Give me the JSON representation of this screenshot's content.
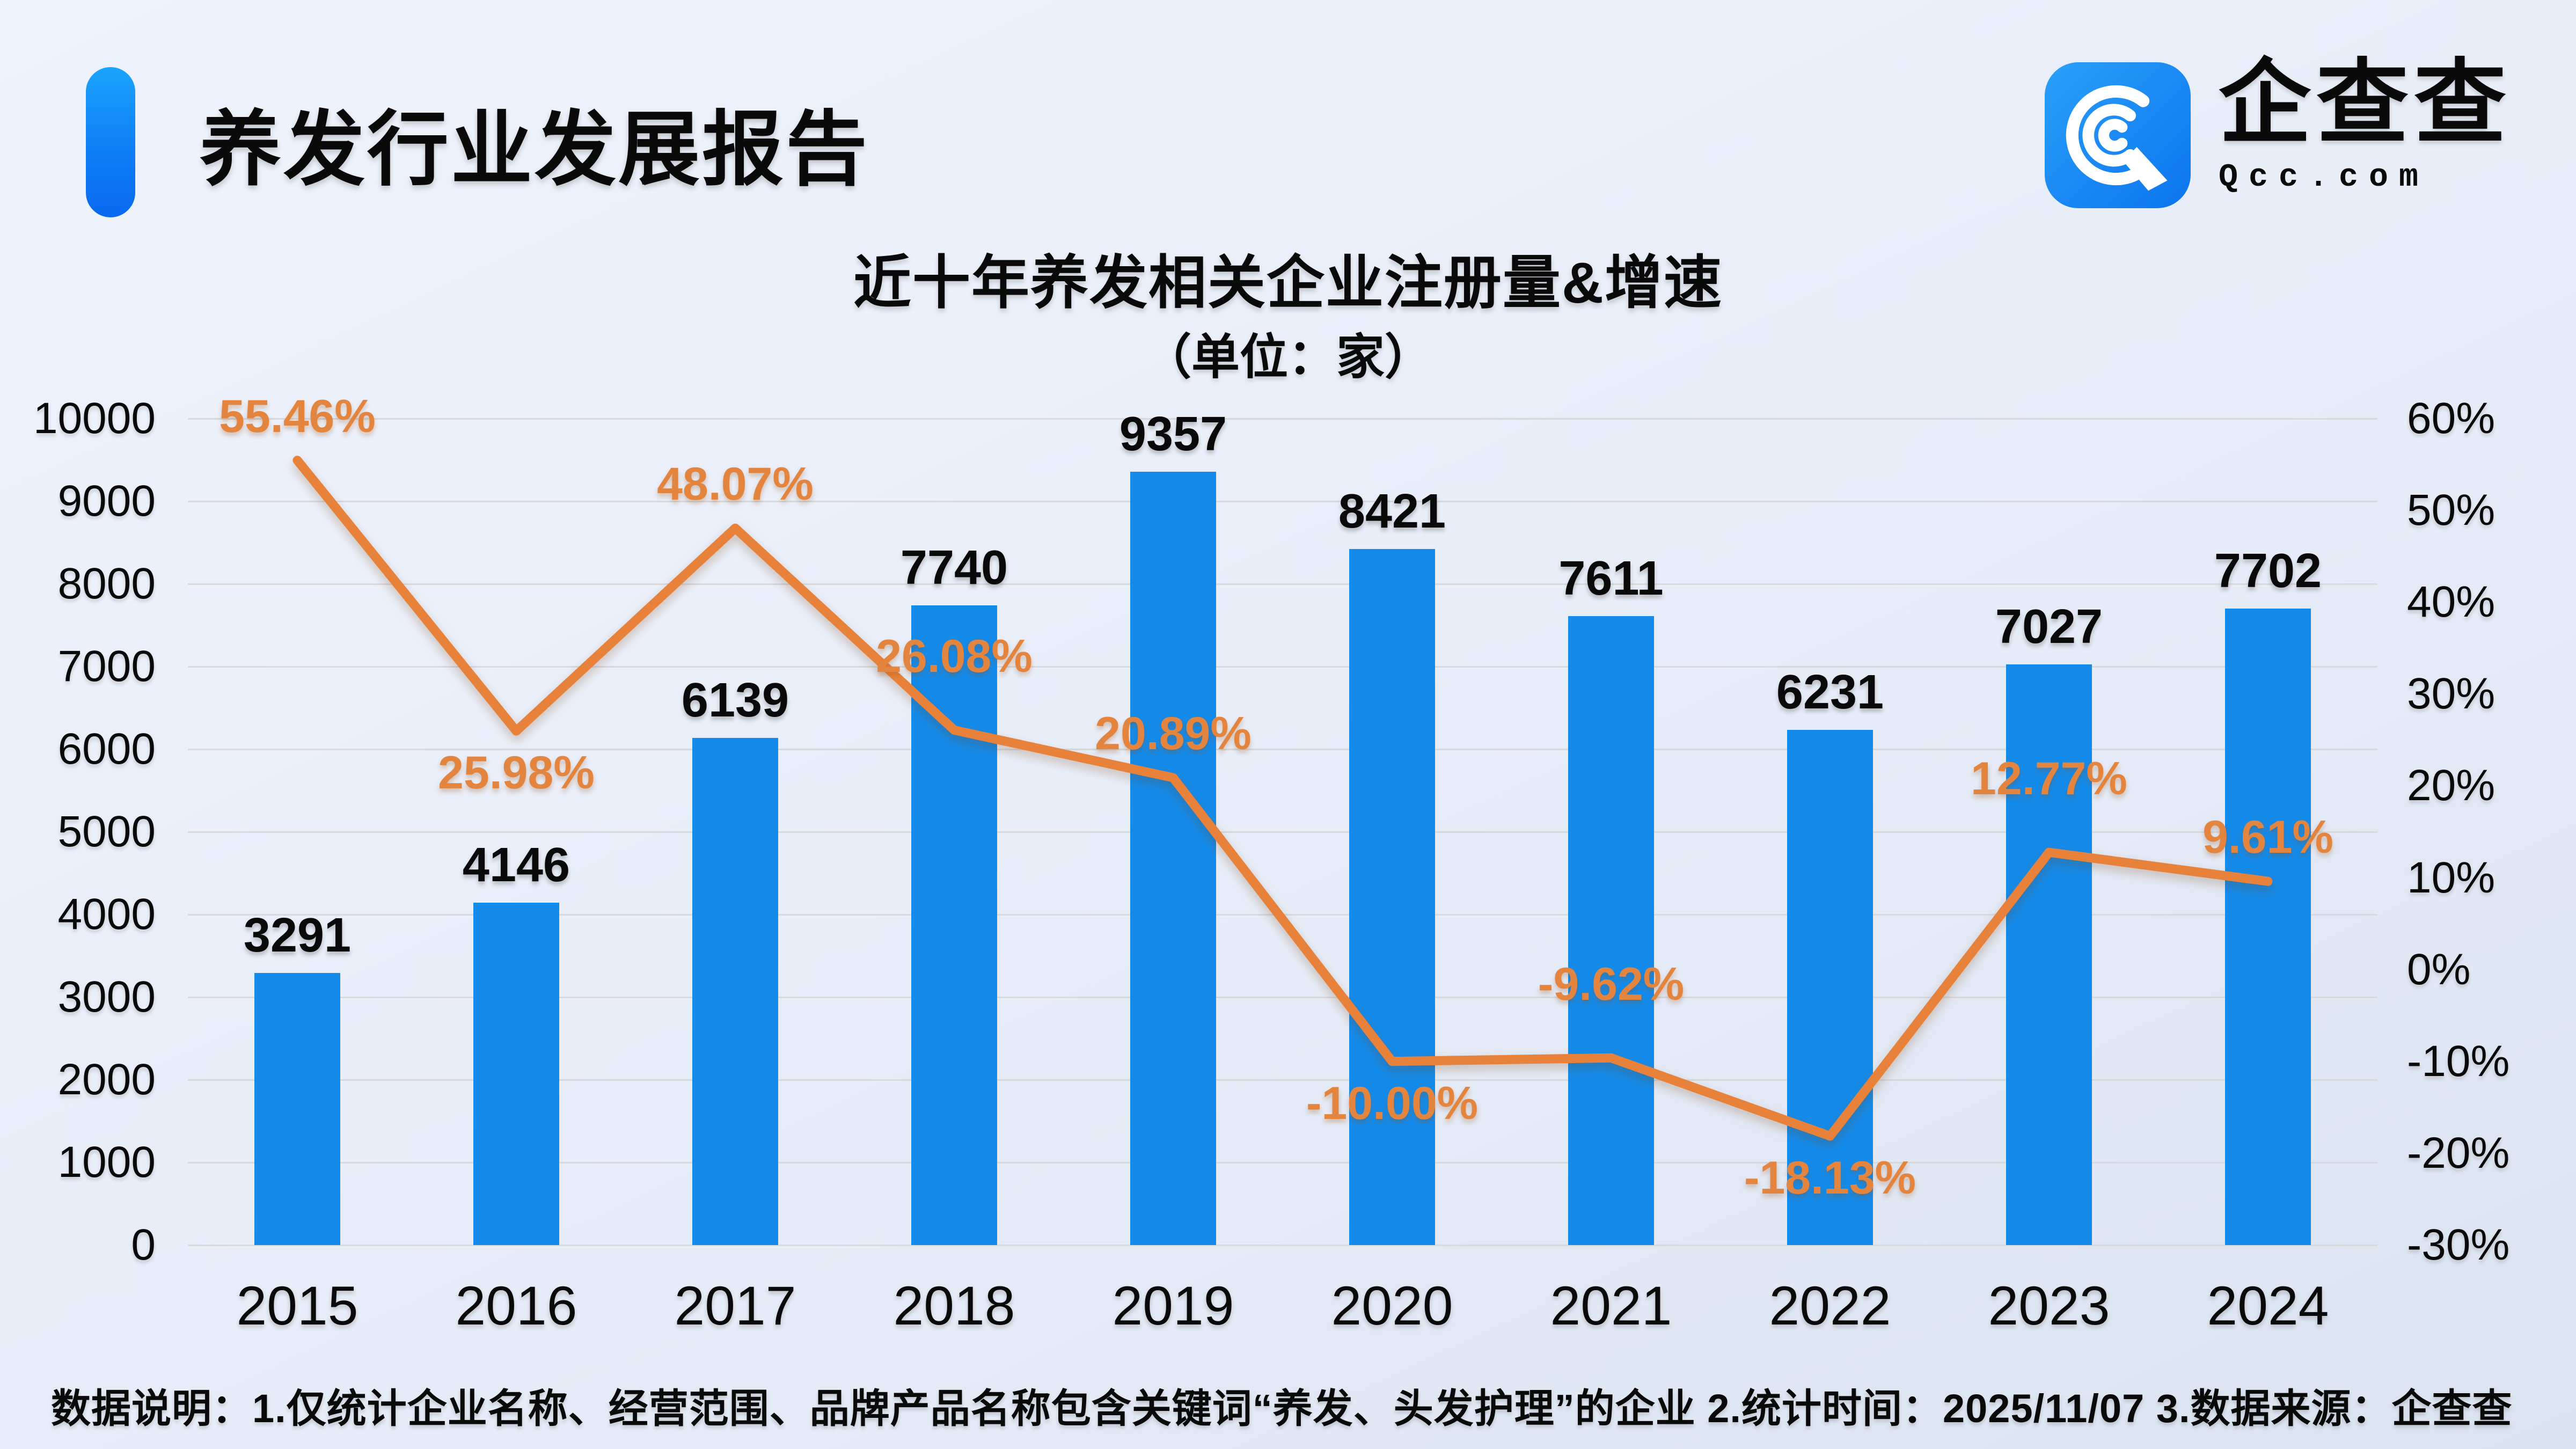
{
  "header": {
    "title": "养发行业发展报告"
  },
  "logo": {
    "name": "企查查",
    "domain": "Qcc.com"
  },
  "chart": {
    "title": "近十年养发相关企业注册量&增速",
    "subtitle": "（单位：家）"
  },
  "footer": {
    "note": "数据说明：1.仅统计企业名称、经营范围、品牌产品名称包含关键词“养发、头发护理”的企业  2.统计时间：2025/11/07   3.数据来源：企查查"
  },
  "colors": {
    "bar": "#158be9",
    "line": "#e8813a",
    "percent_label": "#e3853f",
    "grid": "#d9d9d9",
    "accent_top": "#1ba4fd",
    "accent_bottom": "#0a69ef",
    "logo_blue_top": "#2aa0fa",
    "logo_blue_bottom": "#0c74ee",
    "text": "#0a0a0a"
  },
  "chart_data": {
    "type": "bar",
    "combo": "bar+line",
    "title": "近十年养发相关企业注册量&增速",
    "subtitle_unit": "（单位：家）",
    "categories": [
      "2015",
      "2016",
      "2017",
      "2018",
      "2019",
      "2020",
      "2021",
      "2022",
      "2023",
      "2024"
    ],
    "series": [
      {
        "name": "注册量",
        "type": "bar",
        "axis": "left",
        "values": [
          3291,
          4146,
          6139,
          7740,
          9357,
          8421,
          7611,
          6231,
          7027,
          7702
        ]
      },
      {
        "name": "增速",
        "type": "line",
        "axis": "right",
        "values": [
          55.46,
          25.98,
          48.07,
          26.08,
          20.89,
          -10.0,
          -9.62,
          -18.13,
          12.77,
          9.61
        ],
        "labels": [
          "55.46%",
          "25.98%",
          "48.07%",
          "26.08%",
          "20.89%",
          "-10.00%",
          "-9.62%",
          "-18.13%",
          "12.77%",
          "9.61%"
        ],
        "label_pos": [
          "above",
          "below",
          "above",
          "high",
          "above",
          "below",
          "high",
          "below",
          "high",
          "above"
        ]
      }
    ],
    "left_axis": {
      "min": 0,
      "max": 10000,
      "step": 1000,
      "ticks": [
        "0",
        "1000",
        "2000",
        "3000",
        "4000",
        "5000",
        "6000",
        "7000",
        "8000",
        "9000",
        "10000"
      ]
    },
    "right_axis": {
      "min": -30,
      "max": 60,
      "step": 10,
      "ticks": [
        "-30%",
        "-20%",
        "-10%",
        "0%",
        "10%",
        "20%",
        "30%",
        "40%",
        "50%",
        "60%"
      ]
    },
    "grid": true,
    "legend": false
  }
}
